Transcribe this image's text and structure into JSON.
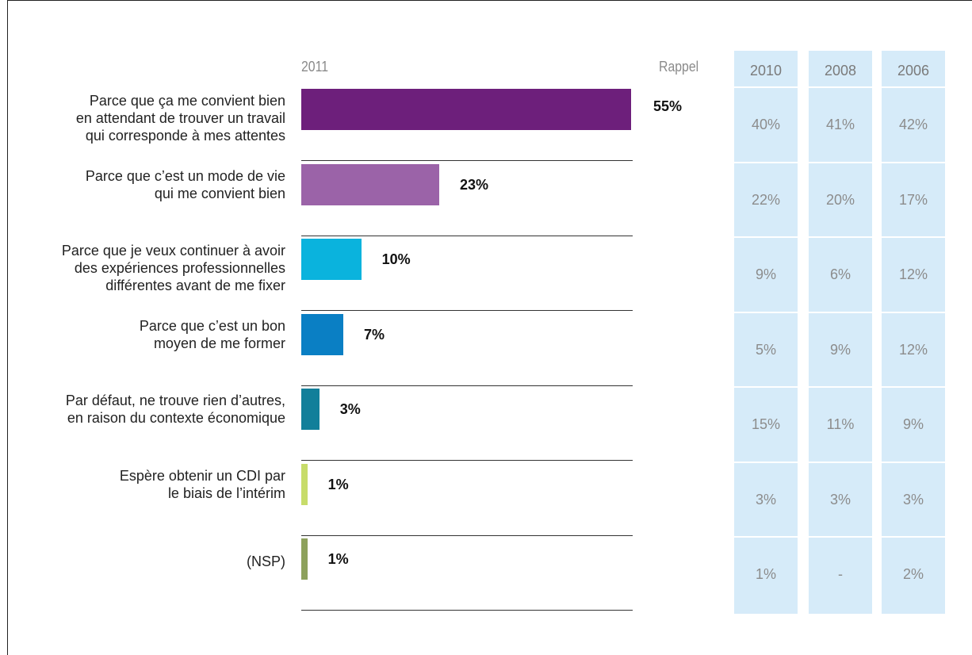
{
  "chart_data": {
    "type": "bar",
    "orientation": "horizontal",
    "title": "",
    "main_header": "2011",
    "recall_header": "Rappel",
    "categories": [
      "Parce que ça me convient bien\nen attendant de trouver un travail\nqui corresponde à mes attentes",
      "Parce que c’est un mode de vie\nqui me convient bien",
      "Parce que je veux continuer à avoir\ndes expériences professionnelles\ndifférentes avant de me fixer",
      "Parce que c’est un bon\nmoyen de me former",
      "Par défaut, ne trouve rien d’autres,\nen raison du contexte économique",
      "Espère obtenir un CDI par\nle biais de l’intérim",
      "(NSP)"
    ],
    "series": [
      {
        "name": "2011",
        "values": [
          55,
          23,
          10,
          7,
          3,
          1,
          1
        ],
        "labels": [
          "55%",
          "23%",
          "10%",
          "7%",
          "3%",
          "1%",
          "1%"
        ],
        "colors": [
          "#6d1f7b",
          "#9b63a8",
          "#0ab3dd",
          "#0a7fc4",
          "#127f9a",
          "#c7dc6a",
          "#8da15c"
        ]
      }
    ],
    "xlim": [
      0,
      55
    ],
    "recall_table": {
      "columns": [
        "2010",
        "2008",
        "2006"
      ],
      "rows": [
        [
          "40%",
          "41%",
          "42%"
        ],
        [
          "22%",
          "20%",
          "17%"
        ],
        [
          "9%",
          "6%",
          "12%"
        ],
        [
          "5%",
          "9%",
          "12%"
        ],
        [
          "15%",
          "11%",
          "9%"
        ],
        [
          "3%",
          "3%",
          "3%"
        ],
        [
          "1%",
          "-",
          "2%"
        ]
      ]
    }
  }
}
